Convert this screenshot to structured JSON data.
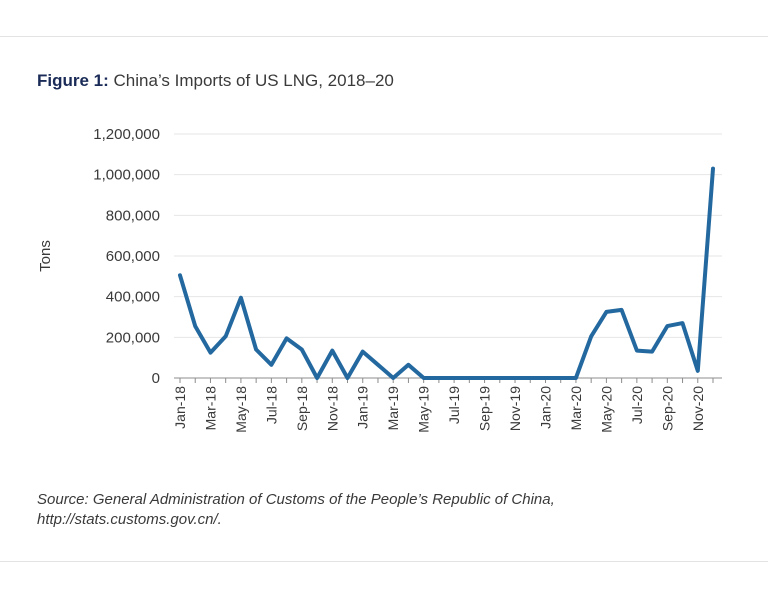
{
  "figure": {
    "label": "Figure 1:",
    "title": "China’s Imports of US LNG, 2018–20"
  },
  "source_note": {
    "line1": "Source:  General Administration of Customs of the People’s Republic of China,",
    "line2": "http://stats.customs.gov.cn/."
  },
  "colors": {
    "line": "#2369a0",
    "grid": "#e6e6e6",
    "axis": "#8c8c8c",
    "title_accent": "#1a2b57"
  },
  "chart_data": {
    "type": "line",
    "title": "China’s Imports of US LNG, 2018–20",
    "xlabel": "",
    "ylabel": "Tons",
    "ylim": [
      0,
      1200000
    ],
    "yticks": [
      0,
      200000,
      400000,
      600000,
      800000,
      1000000,
      1200000
    ],
    "ytick_labels": [
      "0",
      "200,000",
      "400,000",
      "600,000",
      "800,000",
      "1,000,000",
      "1,200,000"
    ],
    "grid": true,
    "categories": [
      "Jan-18",
      "Feb-18",
      "Mar-18",
      "Apr-18",
      "May-18",
      "Jun-18",
      "Jul-18",
      "Aug-18",
      "Sep-18",
      "Oct-18",
      "Nov-18",
      "Dec-18",
      "Jan-19",
      "Feb-19",
      "Mar-19",
      "Apr-19",
      "May-19",
      "Jun-19",
      "Jul-19",
      "Aug-19",
      "Sep-19",
      "Oct-19",
      "Nov-19",
      "Dec-19",
      "Jan-20",
      "Feb-20",
      "Mar-20",
      "Apr-20",
      "May-20",
      "Jun-20",
      "Jul-20",
      "Aug-20",
      "Sep-20",
      "Oct-20",
      "Nov-20",
      "Dec-20"
    ],
    "xtick_labels": [
      "Jan-18",
      "Mar-18",
      "May-18",
      "Jul-18",
      "Sep-18",
      "Nov-18",
      "Jan-19",
      "Mar-19",
      "May-19",
      "Jul-19",
      "Sep-19",
      "Nov-19",
      "Jan-20",
      "Mar-20",
      "May-20",
      "Jul-20",
      "Sep-20",
      "Nov-20"
    ],
    "series": [
      {
        "name": "China’s Imports of US LNG",
        "values": [
          505000,
          255000,
          125000,
          205000,
          395000,
          140000,
          65000,
          195000,
          140000,
          0,
          135000,
          0,
          130000,
          65000,
          0,
          65000,
          0,
          0,
          0,
          0,
          0,
          0,
          0,
          0,
          0,
          0,
          0,
          205000,
          325000,
          335000,
          135000,
          130000,
          255000,
          270000,
          35000,
          1030000
        ]
      }
    ]
  }
}
